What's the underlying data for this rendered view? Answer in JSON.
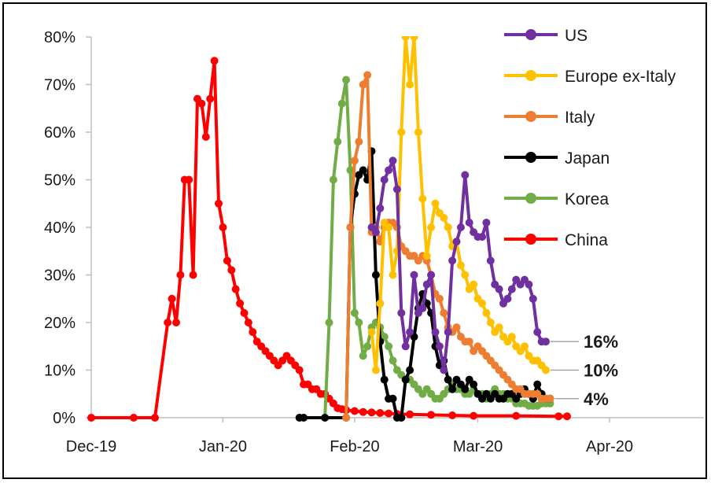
{
  "chart_data": {
    "type": "line",
    "title": "",
    "xlabel": "",
    "ylabel": "",
    "x_unit": "day index from Dec-19 (day 0 = start of Dec-19)",
    "xlim": [
      0,
      151
    ],
    "ylim": [
      0,
      80
    ],
    "x_ticks": [
      {
        "label": "Dec-19",
        "day": 0
      },
      {
        "label": "Jan-20",
        "day": 31
      },
      {
        "label": "Feb-20",
        "day": 62
      },
      {
        "label": "Mar-20",
        "day": 91
      },
      {
        "label": "Apr-20",
        "day": 122
      }
    ],
    "y_ticks": [
      {
        "label": "0%",
        "value": 0
      },
      {
        "label": "10%",
        "value": 10
      },
      {
        "label": "20%",
        "value": 20
      },
      {
        "label": "30%",
        "value": 30
      },
      {
        "label": "40%",
        "value": 40
      },
      {
        "label": "50%",
        "value": 50
      },
      {
        "label": "60%",
        "value": 60
      },
      {
        "label": "70%",
        "value": 70
      },
      {
        "label": "80%",
        "value": 80
      }
    ],
    "grid": false,
    "legend_position": "top-right",
    "end_labels": [
      {
        "text": "16%",
        "value": 16
      },
      {
        "text": "10%",
        "value": 10
      },
      {
        "text": "4%",
        "value": 4
      }
    ],
    "series": [
      {
        "name": "China",
        "color": "#ff0000",
        "points": [
          [
            0,
            0
          ],
          [
            10,
            0
          ],
          [
            15,
            0
          ],
          [
            18,
            20
          ],
          [
            19,
            25
          ],
          [
            20,
            20
          ],
          [
            21,
            30
          ],
          [
            22,
            50
          ],
          [
            23,
            50
          ],
          [
            24,
            30
          ],
          [
            25,
            67
          ],
          [
            26,
            66
          ],
          [
            27,
            59
          ],
          [
            28,
            67
          ],
          [
            29,
            75
          ],
          [
            30,
            45
          ],
          [
            31,
            40
          ],
          [
            32,
            33
          ],
          [
            33,
            31
          ],
          [
            34,
            27
          ],
          [
            35,
            24
          ],
          [
            36,
            22
          ],
          [
            37,
            20
          ],
          [
            38,
            18
          ],
          [
            39,
            16
          ],
          [
            40,
            15
          ],
          [
            41,
            14
          ],
          [
            42,
            13
          ],
          [
            43,
            12
          ],
          [
            44,
            11
          ],
          [
            45,
            12
          ],
          [
            46,
            13
          ],
          [
            47,
            12
          ],
          [
            48,
            11
          ],
          [
            49,
            10
          ],
          [
            50,
            7
          ],
          [
            51,
            7
          ],
          [
            52,
            6
          ],
          [
            53,
            6
          ],
          [
            54,
            5
          ],
          [
            55,
            5
          ],
          [
            56,
            4
          ],
          [
            57,
            3
          ],
          [
            58,
            2
          ],
          [
            59,
            1.8
          ],
          [
            60,
            1.6
          ],
          [
            62,
            1.4
          ],
          [
            64,
            1.2
          ],
          [
            66,
            1.1
          ],
          [
            68,
            1
          ],
          [
            70,
            0.9
          ],
          [
            72,
            0.8
          ],
          [
            75,
            0.7
          ],
          [
            80,
            0.6
          ],
          [
            85,
            0.5
          ],
          [
            90,
            0.4
          ],
          [
            100,
            0.4
          ],
          [
            110,
            0.3
          ],
          [
            112,
            0.3
          ]
        ]
      },
      {
        "name": "Korea",
        "color": "#71ac47",
        "points": [
          [
            55,
            0
          ],
          [
            56,
            20
          ],
          [
            57,
            50
          ],
          [
            58,
            58
          ],
          [
            59,
            66
          ],
          [
            60,
            71
          ],
          [
            61,
            52
          ],
          [
            62,
            22
          ],
          [
            63,
            20
          ],
          [
            64,
            13
          ],
          [
            65,
            15
          ],
          [
            66,
            19
          ],
          [
            67,
            20
          ],
          [
            68,
            19
          ],
          [
            69,
            17
          ],
          [
            70,
            15
          ],
          [
            71,
            12
          ],
          [
            72,
            10
          ],
          [
            73,
            9
          ],
          [
            74,
            8
          ],
          [
            75,
            8
          ],
          [
            76,
            7
          ],
          [
            77,
            6
          ],
          [
            78,
            5
          ],
          [
            79,
            6
          ],
          [
            80,
            5
          ],
          [
            81,
            4
          ],
          [
            82,
            4
          ],
          [
            83,
            5
          ],
          [
            84,
            6
          ],
          [
            85,
            7
          ],
          [
            86,
            6
          ],
          [
            87,
            6
          ],
          [
            88,
            5
          ],
          [
            89,
            5
          ],
          [
            90,
            6
          ],
          [
            91,
            5
          ],
          [
            92,
            5
          ],
          [
            93,
            4
          ],
          [
            94,
            5
          ],
          [
            95,
            6
          ],
          [
            96,
            5
          ],
          [
            97,
            5
          ],
          [
            98,
            4
          ],
          [
            99,
            4
          ],
          [
            100,
            3
          ],
          [
            101,
            3
          ],
          [
            102,
            3
          ],
          [
            103,
            2.5
          ],
          [
            104,
            2.5
          ],
          [
            105,
            2.5
          ],
          [
            106,
            3
          ],
          [
            107,
            3
          ],
          [
            108,
            3
          ]
        ]
      },
      {
        "name": "Japan",
        "color": "#000000",
        "points": [
          [
            49,
            0
          ],
          [
            50,
            0
          ],
          [
            55,
            0
          ],
          [
            60,
            0
          ],
          [
            61,
            40
          ],
          [
            62,
            47
          ],
          [
            63,
            51
          ],
          [
            64,
            52
          ],
          [
            65,
            50
          ],
          [
            66,
            56
          ],
          [
            67,
            30
          ],
          [
            68,
            16
          ],
          [
            69,
            8
          ],
          [
            70,
            4
          ],
          [
            71,
            4
          ],
          [
            72,
            0
          ],
          [
            73,
            0
          ],
          [
            74,
            8
          ],
          [
            75,
            10
          ],
          [
            76,
            17
          ],
          [
            77,
            23
          ],
          [
            78,
            26
          ],
          [
            79,
            24
          ],
          [
            80,
            22
          ],
          [
            81,
            15
          ],
          [
            82,
            11
          ],
          [
            83,
            12
          ],
          [
            84,
            8
          ],
          [
            85,
            6
          ],
          [
            86,
            8
          ],
          [
            87,
            7
          ],
          [
            88,
            6
          ],
          [
            89,
            8
          ],
          [
            90,
            7
          ],
          [
            91,
            5
          ],
          [
            92,
            4
          ],
          [
            93,
            5
          ],
          [
            94,
            4
          ],
          [
            95,
            5
          ],
          [
            96,
            4
          ],
          [
            97,
            4
          ],
          [
            98,
            5
          ],
          [
            99,
            5
          ],
          [
            100,
            4
          ],
          [
            101,
            5
          ],
          [
            102,
            6
          ],
          [
            103,
            5
          ],
          [
            104,
            4
          ],
          [
            105,
            7
          ],
          [
            106,
            5
          ],
          [
            107,
            4
          ],
          [
            108,
            4
          ]
        ]
      },
      {
        "name": "Italy",
        "color": "#ed7d31",
        "points": [
          [
            60,
            0
          ],
          [
            61,
            40
          ],
          [
            62,
            54
          ],
          [
            63,
            58
          ],
          [
            64,
            70
          ],
          [
            65,
            72
          ],
          [
            66,
            39
          ],
          [
            67,
            40
          ],
          [
            68,
            37
          ],
          [
            69,
            40
          ],
          [
            70,
            41
          ],
          [
            71,
            41
          ],
          [
            72,
            40
          ],
          [
            73,
            36
          ],
          [
            74,
            35
          ],
          [
            75,
            34
          ],
          [
            76,
            34
          ],
          [
            77,
            33
          ],
          [
            78,
            34
          ],
          [
            79,
            33
          ],
          [
            80,
            30
          ],
          [
            81,
            26
          ],
          [
            82,
            25
          ],
          [
            83,
            22
          ],
          [
            84,
            19
          ],
          [
            85,
            18
          ],
          [
            86,
            19
          ],
          [
            87,
            17
          ],
          [
            88,
            16
          ],
          [
            89,
            16
          ],
          [
            90,
            14
          ],
          [
            91,
            15
          ],
          [
            92,
            14
          ],
          [
            93,
            13
          ],
          [
            94,
            12
          ],
          [
            95,
            11
          ],
          [
            96,
            10
          ],
          [
            97,
            9
          ],
          [
            98,
            8
          ],
          [
            99,
            7
          ],
          [
            100,
            6
          ],
          [
            101,
            6
          ],
          [
            102,
            5
          ],
          [
            103,
            5
          ],
          [
            104,
            5
          ],
          [
            105,
            5
          ],
          [
            106,
            4
          ],
          [
            107,
            4
          ],
          [
            108,
            4
          ]
        ]
      },
      {
        "name": "Europe ex-Italy",
        "color": "#ffc000",
        "points": [
          [
            66,
            18
          ],
          [
            67,
            10
          ],
          [
            68,
            24
          ],
          [
            69,
            41
          ],
          [
            70,
            40
          ],
          [
            71,
            30
          ],
          [
            72,
            35
          ],
          [
            73,
            60
          ],
          [
            74,
            80
          ],
          [
            75,
            70
          ],
          [
            76,
            80
          ],
          [
            77,
            60
          ],
          [
            78,
            46
          ],
          [
            79,
            34
          ],
          [
            80,
            40
          ],
          [
            81,
            45
          ],
          [
            82,
            43
          ],
          [
            83,
            42
          ],
          [
            84,
            40
          ],
          [
            85,
            36
          ],
          [
            86,
            37
          ],
          [
            87,
            32
          ],
          [
            88,
            30
          ],
          [
            89,
            27
          ],
          [
            90,
            28
          ],
          [
            91,
            25
          ],
          [
            92,
            24
          ],
          [
            93,
            22
          ],
          [
            94,
            20
          ],
          [
            95,
            18
          ],
          [
            96,
            19
          ],
          [
            97,
            17
          ],
          [
            98,
            16
          ],
          [
            99,
            17
          ],
          [
            100,
            15
          ],
          [
            101,
            14
          ],
          [
            102,
            15
          ],
          [
            103,
            13
          ],
          [
            104,
            12
          ],
          [
            105,
            12
          ],
          [
            106,
            11
          ],
          [
            107,
            10
          ]
        ]
      },
      {
        "name": "US",
        "color": "#7030a0",
        "points": [
          [
            66,
            40
          ],
          [
            67,
            39
          ],
          [
            68,
            44
          ],
          [
            69,
            50
          ],
          [
            70,
            52
          ],
          [
            71,
            54
          ],
          [
            72,
            48
          ],
          [
            73,
            22
          ],
          [
            74,
            15
          ],
          [
            75,
            18
          ],
          [
            76,
            30
          ],
          [
            77,
            22
          ],
          [
            78,
            23
          ],
          [
            79,
            28
          ],
          [
            80,
            30
          ],
          [
            81,
            18
          ],
          [
            82,
            15
          ],
          [
            83,
            10
          ],
          [
            84,
            18
          ],
          [
            85,
            33
          ],
          [
            86,
            37
          ],
          [
            87,
            40
          ],
          [
            88,
            51
          ],
          [
            89,
            41
          ],
          [
            90,
            39
          ],
          [
            91,
            38
          ],
          [
            92,
            38
          ],
          [
            93,
            41
          ],
          [
            94,
            33
          ],
          [
            95,
            28
          ],
          [
            96,
            27
          ],
          [
            97,
            24
          ],
          [
            98,
            25
          ],
          [
            99,
            27
          ],
          [
            100,
            29
          ],
          [
            101,
            28
          ],
          [
            102,
            29
          ],
          [
            103,
            28
          ],
          [
            104,
            25
          ],
          [
            105,
            18
          ],
          [
            106,
            16
          ],
          [
            107,
            16
          ]
        ]
      }
    ],
    "legend": [
      {
        "label": "US",
        "color": "#7030a0"
      },
      {
        "label": "Europe ex-Italy",
        "color": "#ffc000"
      },
      {
        "label": "Italy",
        "color": "#ed7d31"
      },
      {
        "label": "Japan",
        "color": "#000000"
      },
      {
        "label": "Korea",
        "color": "#71ac47"
      },
      {
        "label": "China",
        "color": "#ff0000"
      }
    ]
  }
}
